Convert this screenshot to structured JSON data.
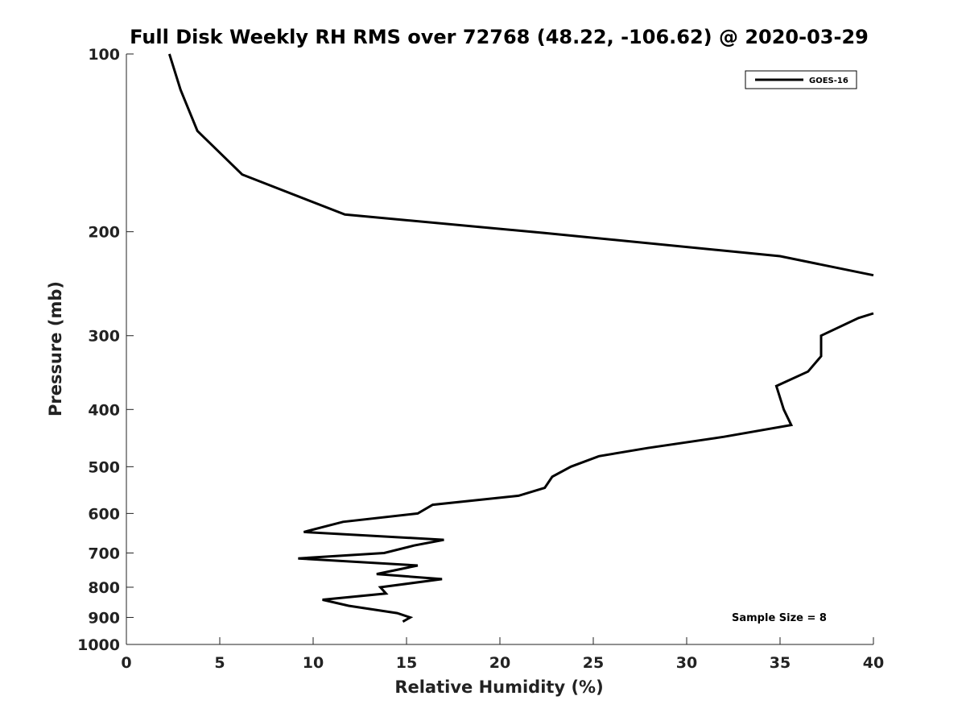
{
  "chart_data": {
    "type": "line",
    "title": "Full Disk Weekly RH RMS over 72768 (48.22, -106.62) @ 2020-03-29",
    "xlabel": "Relative Humidity (%)",
    "ylabel": "Pressure (mb)",
    "xlim": [
      0,
      40
    ],
    "ylim": [
      100,
      1000
    ],
    "y_scale": "log",
    "y_reversed": true,
    "x_ticks": [
      0,
      5,
      10,
      15,
      20,
      25,
      30,
      35,
      40
    ],
    "y_ticks": [
      100,
      200,
      300,
      400,
      500,
      600,
      700,
      800,
      900,
      1000
    ],
    "grid": false,
    "legend_position": "top-right",
    "annotation": "Sample Size = 8",
    "series": [
      {
        "name": "GOES-16",
        "color": "#000000",
        "segments": [
          [
            {
              "x": 2.3,
              "p": 100
            },
            {
              "x": 2.9,
              "p": 115
            },
            {
              "x": 3.8,
              "p": 135
            },
            {
              "x": 6.2,
              "p": 160
            },
            {
              "x": 11.7,
              "p": 187
            },
            {
              "x": 22.4,
              "p": 201
            },
            {
              "x": 35.0,
              "p": 220
            },
            {
              "x": 40.0,
              "p": 237
            }
          ],
          [
            {
              "x": 40.0,
              "p": 275
            },
            {
              "x": 39.2,
              "p": 280
            },
            {
              "x": 37.2,
              "p": 300
            },
            {
              "x": 37.2,
              "p": 325
            },
            {
              "x": 36.5,
              "p": 345
            },
            {
              "x": 34.8,
              "p": 365
            },
            {
              "x": 35.2,
              "p": 400
            },
            {
              "x": 35.6,
              "p": 425
            },
            {
              "x": 32.0,
              "p": 445
            },
            {
              "x": 27.9,
              "p": 465
            },
            {
              "x": 25.3,
              "p": 480
            },
            {
              "x": 23.8,
              "p": 500
            },
            {
              "x": 22.8,
              "p": 520
            },
            {
              "x": 22.4,
              "p": 543
            },
            {
              "x": 21.0,
              "p": 560
            },
            {
              "x": 16.4,
              "p": 580
            },
            {
              "x": 15.6,
              "p": 600
            },
            {
              "x": 11.6,
              "p": 620
            },
            {
              "x": 9.5,
              "p": 645
            },
            {
              "x": 17.0,
              "p": 665
            },
            {
              "x": 15.4,
              "p": 680
            },
            {
              "x": 13.8,
              "p": 700
            },
            {
              "x": 9.2,
              "p": 715
            },
            {
              "x": 15.6,
              "p": 735
            },
            {
              "x": 13.4,
              "p": 760
            },
            {
              "x": 16.9,
              "p": 775
            },
            {
              "x": 13.6,
              "p": 800
            },
            {
              "x": 13.9,
              "p": 820
            },
            {
              "x": 10.5,
              "p": 840
            },
            {
              "x": 11.9,
              "p": 860
            },
            {
              "x": 14.5,
              "p": 885
            },
            {
              "x": 15.2,
              "p": 900
            },
            {
              "x": 14.8,
              "p": 915
            }
          ]
        ]
      }
    ]
  }
}
